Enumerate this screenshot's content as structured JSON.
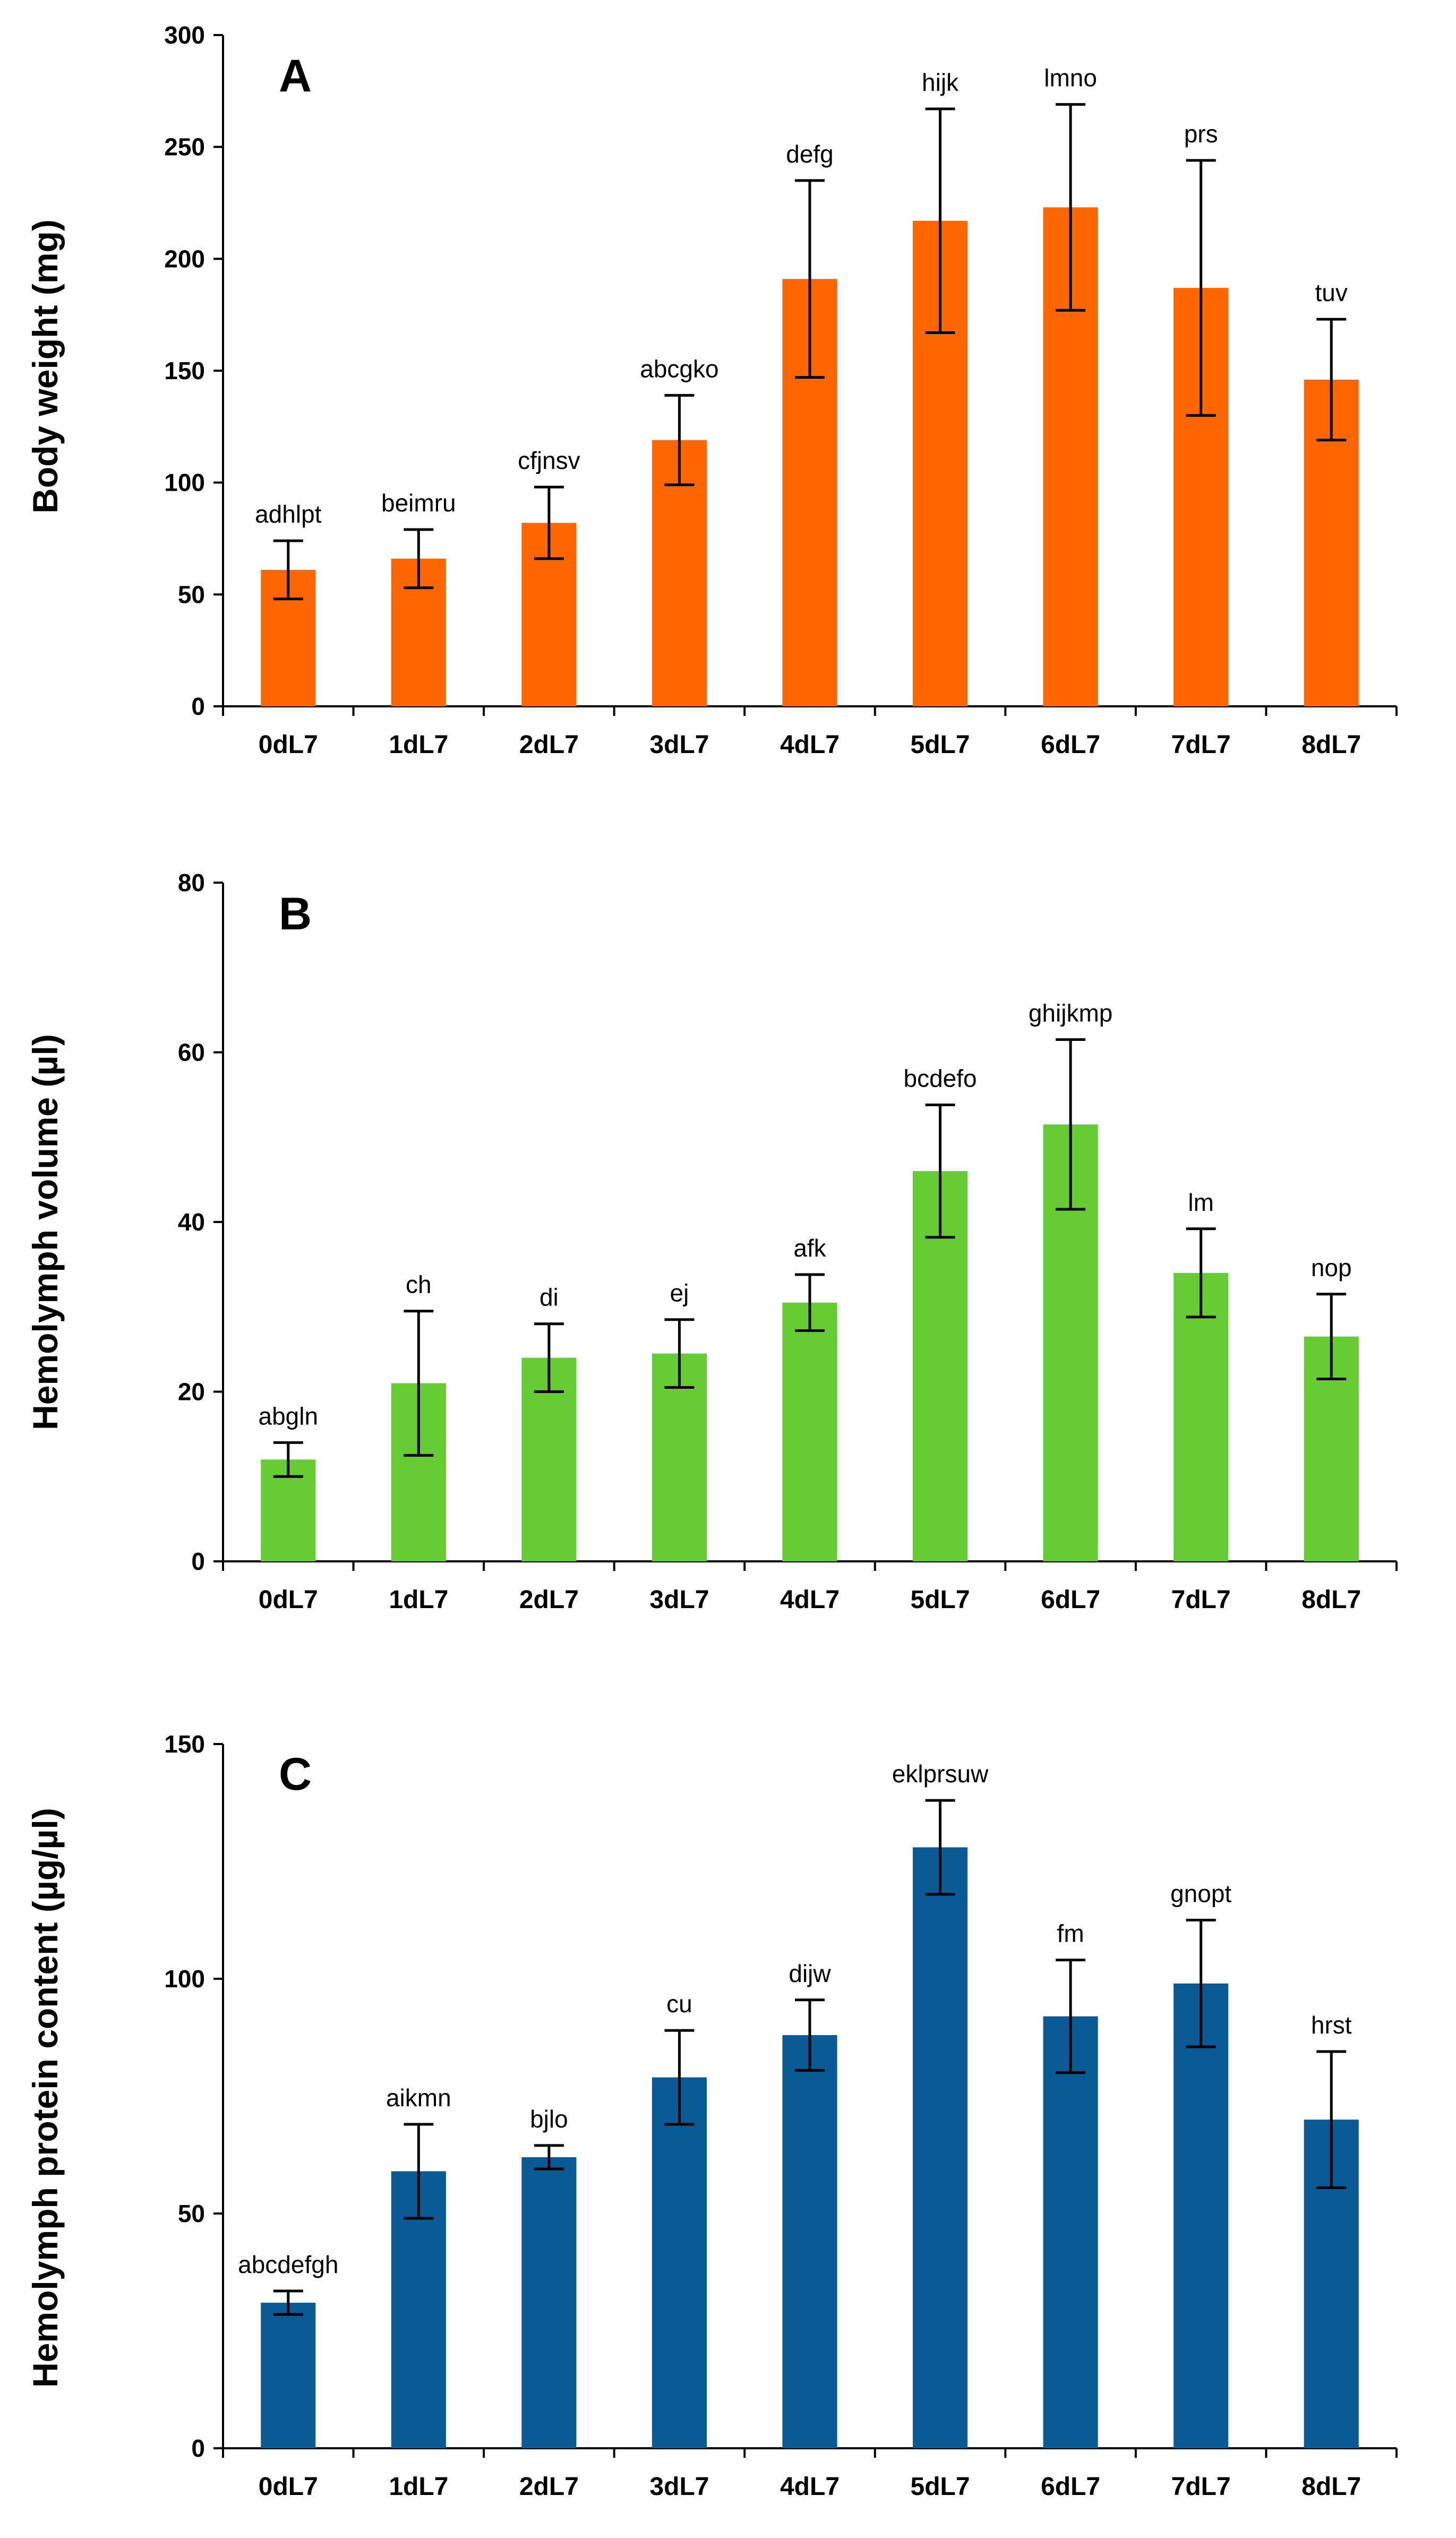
{
  "chart_data": [
    {
      "type": "bar",
      "panel_letter": "A",
      "ylabel": "Body weight (mg)",
      "ylim": [
        0,
        300
      ],
      "yticks": [
        0,
        50,
        100,
        150,
        200,
        250,
        300
      ],
      "color": "#ff6600",
      "categories": [
        "0dL7",
        "1dL7",
        "2dL7",
        "3dL7",
        "4dL7",
        "5dL7",
        "6dL7",
        "7dL7",
        "8dL7"
      ],
      "values": [
        61,
        66,
        82,
        119,
        191,
        217,
        223,
        187,
        146
      ],
      "errors": [
        13,
        13,
        16,
        20,
        44,
        50,
        46,
        57,
        27
      ],
      "labels": [
        "adhlpt",
        "beimru",
        "cfjnsv",
        "abcgko",
        "defg",
        "hijk",
        "lmno",
        "prs",
        "tuv"
      ]
    },
    {
      "type": "bar",
      "panel_letter": "B",
      "ylabel": "Hemolymph volume (µl)",
      "ylim": [
        0,
        80
      ],
      "yticks": [
        0,
        20,
        40,
        60,
        80
      ],
      "color": "#66cc33",
      "categories": [
        "0dL7",
        "1dL7",
        "2dL7",
        "3dL7",
        "4dL7",
        "5dL7",
        "6dL7",
        "7dL7",
        "8dL7"
      ],
      "values": [
        12,
        21,
        24,
        24.5,
        30.5,
        46,
        51.5,
        34,
        26.5
      ],
      "errors": [
        2,
        8.5,
        4,
        4,
        3.3,
        7.8,
        10,
        5.2,
        5
      ],
      "labels": [
        "abgln",
        "ch",
        "di",
        "ej",
        "afk",
        "bcdefo",
        "ghijkmp",
        "lm",
        "nop"
      ]
    },
    {
      "type": "bar",
      "panel_letter": "C",
      "ylabel": "Hemolymph protein content (µg/µl)",
      "ylim": [
        0,
        150
      ],
      "yticks": [
        0,
        50,
        100,
        150
      ],
      "color": "#0a5a96",
      "categories": [
        "0dL7",
        "1dL7",
        "2dL7",
        "3dL7",
        "4dL7",
        "5dL7",
        "6dL7",
        "7dL7",
        "8dL7"
      ],
      "values": [
        31,
        59,
        62,
        79,
        88,
        128,
        92,
        99,
        70
      ],
      "errors": [
        2.5,
        10,
        2.5,
        10,
        7.5,
        10,
        12,
        13.5,
        14.5
      ],
      "labels": [
        "abcdefgh",
        "aikmn",
        "bjlo",
        "cu",
        "dijw",
        "eklprsuw",
        "fm",
        "gnopt",
        "hrst"
      ]
    }
  ]
}
